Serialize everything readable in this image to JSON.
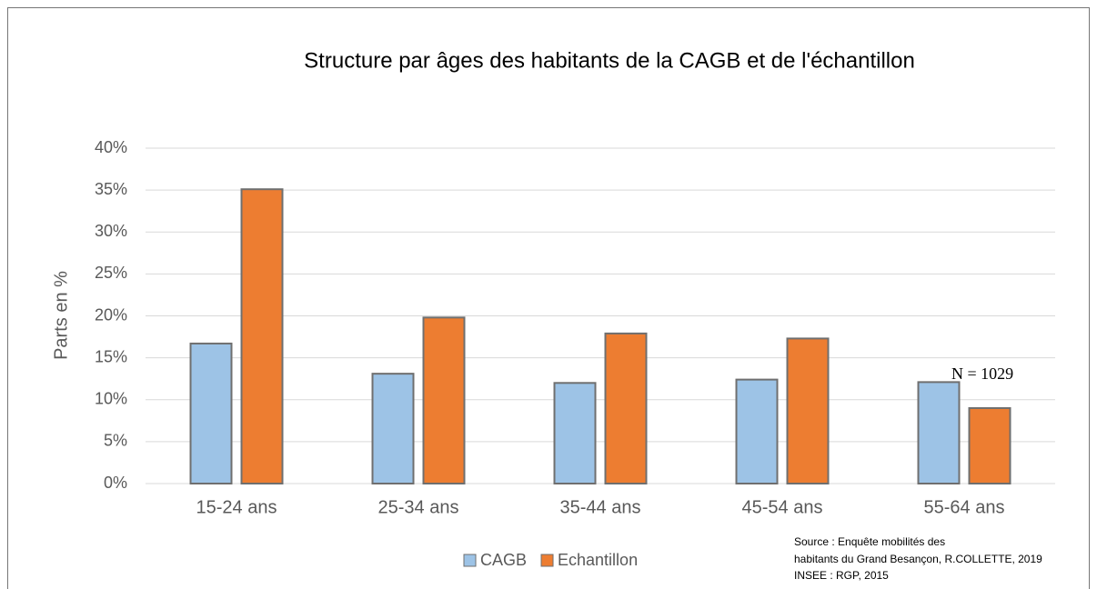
{
  "chart_data": {
    "type": "bar",
    "title": "Structure par âges des habitants de la CAGB et de l'échantillon",
    "y_label": "Parts en %",
    "categories": [
      "15-24 ans",
      "25-34 ans",
      "35-44 ans",
      "45-54 ans",
      "55-64 ans"
    ],
    "series": [
      {
        "name": "CAGB",
        "color": "#9dc3e6",
        "values": [
          16.7,
          13.1,
          12.0,
          12.4,
          12.1
        ]
      },
      {
        "name": "Echantillon",
        "color": "#ed7d31",
        "values": [
          35.1,
          19.8,
          17.9,
          17.3,
          9.0
        ]
      }
    ],
    "ylim": [
      0,
      40
    ],
    "yticks": [
      {
        "value": 0,
        "label": "0%"
      },
      {
        "value": 5,
        "label": "5%"
      },
      {
        "value": 10,
        "label": "10%"
      },
      {
        "value": 15,
        "label": "15%"
      },
      {
        "value": 20,
        "label": "20%"
      },
      {
        "value": 25,
        "label": "25%"
      },
      {
        "value": 30,
        "label": "30%"
      },
      {
        "value": 35,
        "label": "35%"
      },
      {
        "value": 40,
        "label": "40%"
      }
    ],
    "grid": true,
    "legend": "bottom",
    "annotations": [
      "N = 1029"
    ],
    "source": [
      "Source : Enquête mobilités des",
      "habitants du Grand Besançon, R.COLLETTE, 2019",
      "INSEE : RGP, 2015"
    ]
  }
}
